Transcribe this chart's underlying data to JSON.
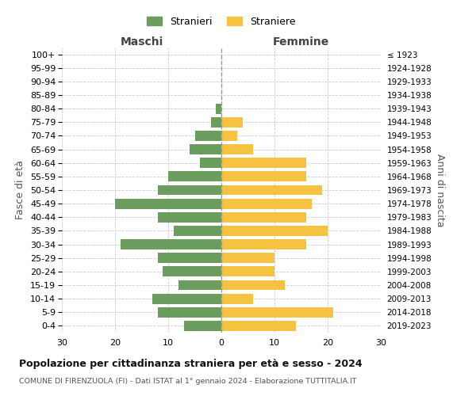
{
  "age_groups": [
    "100+",
    "95-99",
    "90-94",
    "85-89",
    "80-84",
    "75-79",
    "70-74",
    "65-69",
    "60-64",
    "55-59",
    "50-54",
    "45-49",
    "40-44",
    "35-39",
    "30-34",
    "25-29",
    "20-24",
    "15-19",
    "10-14",
    "5-9",
    "0-4"
  ],
  "birth_years": [
    "≤ 1923",
    "1924-1928",
    "1929-1933",
    "1934-1938",
    "1939-1943",
    "1944-1948",
    "1949-1953",
    "1954-1958",
    "1959-1963",
    "1964-1968",
    "1969-1973",
    "1974-1978",
    "1979-1983",
    "1984-1988",
    "1989-1993",
    "1994-1998",
    "1999-2003",
    "2004-2008",
    "2009-2013",
    "2014-2018",
    "2019-2023"
  ],
  "males": [
    0,
    0,
    0,
    0,
    -1,
    -2,
    -5,
    -6,
    -4,
    -10,
    -12,
    -20,
    -12,
    -9,
    -19,
    -12,
    -11,
    -8,
    -13,
    -12,
    -7
  ],
  "females": [
    0,
    0,
    0,
    0,
    0,
    4,
    3,
    6,
    16,
    16,
    19,
    17,
    16,
    20,
    16,
    10,
    10,
    12,
    6,
    21,
    14
  ],
  "male_color": "#6b9e5e",
  "female_color": "#f5c242",
  "title": "Popolazione per cittadinanza straniera per età e sesso - 2024",
  "subtitle": "COMUNE DI FIRENZUOLA (FI) - Dati ISTAT al 1° gennaio 2024 - Elaborazione TUTTITALIA.IT",
  "xlabel_left": "Maschi",
  "xlabel_right": "Femmine",
  "ylabel_left": "Fasce di età",
  "ylabel_right": "Anni di nascita",
  "legend_male": "Stranieri",
  "legend_female": "Straniere",
  "xlim": [
    -30,
    30
  ],
  "xticks": [
    -30,
    -20,
    -10,
    0,
    10,
    20,
    30
  ],
  "xticklabels": [
    "30",
    "20",
    "10",
    "0",
    "10",
    "20",
    "30"
  ],
  "background_color": "#ffffff",
  "grid_color": "#cccccc",
  "bar_height": 0.75
}
